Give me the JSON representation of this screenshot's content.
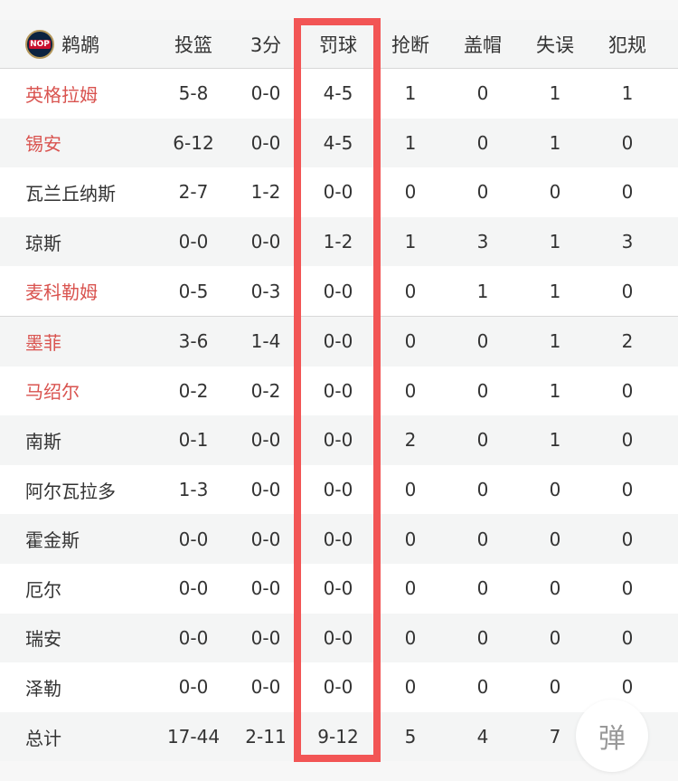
{
  "team": {
    "name": "鹈鹕",
    "logo_text": "NOP"
  },
  "columns": [
    "投篮",
    "3分",
    "罚球",
    "抢断",
    "盖帽",
    "失误",
    "犯规"
  ],
  "colors": {
    "accent_name": "#d9534f",
    "highlight_box": "#f25555"
  },
  "players": [
    {
      "name": "英格拉姆",
      "red": true,
      "stats": [
        "5-8",
        "0-0",
        "4-5",
        "1",
        "0",
        "1",
        "1"
      ]
    },
    {
      "name": "锡安",
      "red": true,
      "stats": [
        "6-12",
        "0-0",
        "4-5",
        "1",
        "0",
        "1",
        "0"
      ]
    },
    {
      "name": "瓦兰丘纳斯",
      "red": false,
      "stats": [
        "2-7",
        "1-2",
        "0-0",
        "0",
        "0",
        "0",
        "0"
      ]
    },
    {
      "name": "琼斯",
      "red": false,
      "stats": [
        "0-0",
        "0-0",
        "1-2",
        "1",
        "3",
        "1",
        "3"
      ]
    },
    {
      "name": "麦科勒姆",
      "red": true,
      "stats": [
        "0-5",
        "0-3",
        "0-0",
        "0",
        "1",
        "1",
        "0"
      ]
    },
    {
      "name": "墨菲",
      "red": true,
      "stats": [
        "3-6",
        "1-4",
        "0-0",
        "0",
        "0",
        "1",
        "2"
      ]
    },
    {
      "name": "马绍尔",
      "red": true,
      "stats": [
        "0-2",
        "0-2",
        "0-0",
        "0",
        "0",
        "1",
        "0"
      ]
    },
    {
      "name": "南斯",
      "red": false,
      "stats": [
        "0-1",
        "0-0",
        "0-0",
        "2",
        "0",
        "1",
        "0"
      ]
    },
    {
      "name": "阿尔瓦拉多",
      "red": false,
      "stats": [
        "1-3",
        "0-0",
        "0-0",
        "0",
        "0",
        "0",
        "0"
      ]
    },
    {
      "name": "霍金斯",
      "red": false,
      "stats": [
        "0-0",
        "0-0",
        "0-0",
        "0",
        "0",
        "0",
        "0"
      ]
    },
    {
      "name": "厄尔",
      "red": false,
      "stats": [
        "0-0",
        "0-0",
        "0-0",
        "0",
        "0",
        "0",
        "0"
      ]
    },
    {
      "name": "瑞安",
      "red": false,
      "stats": [
        "0-0",
        "0-0",
        "0-0",
        "0",
        "0",
        "0",
        "0"
      ]
    },
    {
      "name": "泽勒",
      "red": false,
      "stats": [
        "0-0",
        "0-0",
        "0-0",
        "0",
        "0",
        "0",
        "0"
      ]
    }
  ],
  "total": {
    "name": "总计",
    "stats": [
      "17-44",
      "2-11",
      "9-12",
      "5",
      "4",
      "7",
      ""
    ]
  },
  "float_button": {
    "label": "弹"
  }
}
